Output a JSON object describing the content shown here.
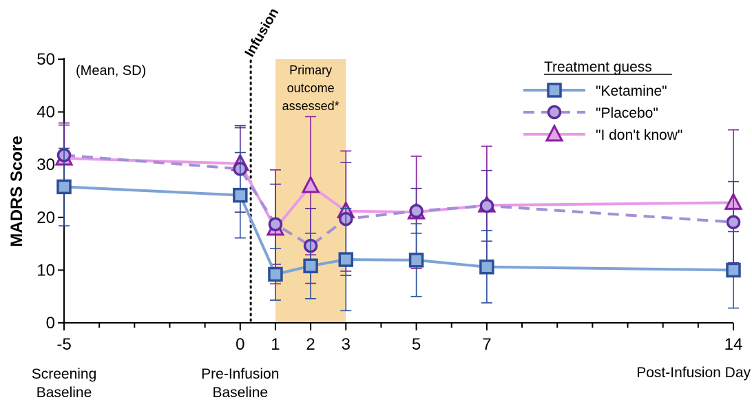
{
  "chart_data": {
    "type": "line",
    "ylabel": "MADRS Score",
    "xlabel": "Post-Infusion Day",
    "ylim": [
      0,
      50
    ],
    "yticks": [
      0,
      10,
      20,
      30,
      40,
      50
    ],
    "xlim": [
      -5,
      14
    ],
    "xticks": [
      -5,
      0,
      1,
      2,
      3,
      5,
      7,
      14
    ],
    "x_sublabels": [
      {
        "x": -5,
        "lines": [
          "Screening",
          "Baseline"
        ]
      },
      {
        "x": 0,
        "lines": [
          "Pre-Infusion",
          "Baseline"
        ]
      }
    ],
    "annotation": "(Mean, SD)",
    "infusion": {
      "label": "Infusion",
      "x": 0.3
    },
    "shaded_region": {
      "x_range": [
        1,
        3
      ],
      "lines": [
        "Primary",
        "outcome",
        "assessed*"
      ],
      "color": "#f7d9a3"
    },
    "legend": {
      "title": "Treatment guess",
      "position": "top-right"
    },
    "series": [
      {
        "name": "\"Ketamine\"",
        "color": "#7ea3d6",
        "marker_color": "#2b4f9a",
        "marker": "square",
        "linestyle": "solid",
        "x": [
          -5,
          0,
          1,
          2,
          3,
          5,
          7,
          14
        ],
        "y": [
          25.8,
          24.2,
          9.2,
          10.8,
          12.0,
          11.9,
          10.6,
          10.0
        ],
        "err_low": [
          18.4,
          16.1,
          4.3,
          4.6,
          2.3,
          5.0,
          3.8,
          2.8
        ],
        "err_high": [
          33.1,
          32.3,
          14.1,
          17.0,
          21.7,
          18.8,
          17.5,
          17.3
        ]
      },
      {
        "name": "\"Placebo\"",
        "color": "#a48fd6",
        "marker_color": "#5a2d9c",
        "marker": "circle",
        "linestyle": "dashed",
        "x": [
          -5,
          0,
          1,
          2,
          3,
          5,
          7,
          14
        ],
        "y": [
          31.8,
          29.2,
          18.7,
          14.6,
          19.7,
          21.2,
          22.2,
          19.1
        ],
        "err_low": [
          25.6,
          21.0,
          11.1,
          7.5,
          9.0,
          17.0,
          15.5,
          11.4
        ],
        "err_high": [
          37.9,
          37.4,
          26.3,
          21.7,
          30.4,
          25.5,
          28.9,
          26.8
        ]
      },
      {
        "name": "\"I don't know\"",
        "color": "#e89ae8",
        "marker_color": "#8a1ea0",
        "marker": "triangle",
        "linestyle": "solid",
        "x": [
          -5,
          0,
          1,
          2,
          3,
          5,
          7,
          14
        ],
        "y": [
          31.2,
          30.2,
          17.9,
          26.0,
          21.2,
          21.0,
          22.3,
          22.8
        ],
        "err_low": [
          24.6,
          23.3,
          7.4,
          12.9,
          9.8,
          10.3,
          11.0,
          9.0
        ],
        "err_high": [
          37.5,
          37.0,
          29.0,
          39.1,
          32.6,
          31.6,
          33.5,
          36.6
        ]
      }
    ]
  }
}
